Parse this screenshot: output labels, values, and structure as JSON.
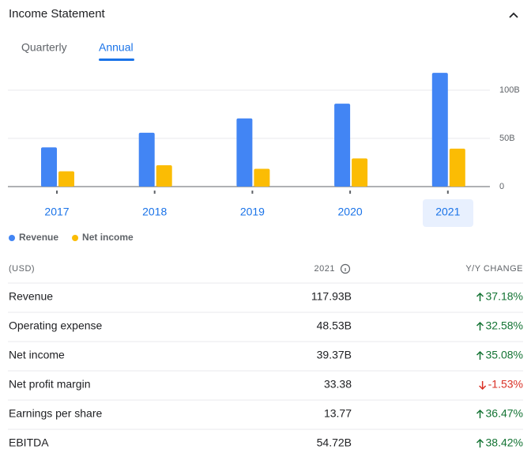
{
  "header": {
    "title": "Income Statement"
  },
  "tabs": [
    "Quarterly",
    "Annual"
  ],
  "chart_data": {
    "type": "bar",
    "categories": [
      "2017",
      "2018",
      "2019",
      "2020",
      "2021"
    ],
    "series": [
      {
        "name": "Revenue",
        "color": "#4285f4",
        "values": [
          40.65,
          55.84,
          70.7,
          85.97,
          117.93
        ]
      },
      {
        "name": "Net income",
        "color": "#fbbc04",
        "values": [
          15.93,
          22.11,
          18.49,
          29.15,
          39.37
        ]
      }
    ],
    "ylim": [
      0,
      120
    ],
    "yticks": [
      0,
      {
        "value": 50,
        "label": "50B"
      },
      {
        "value": 100,
        "label": "100B"
      }
    ],
    "grid": true
  },
  "table": {
    "header": [
      "(USD)",
      "2021",
      "Y/Y CHANGE"
    ],
    "rows": [
      [
        "Revenue",
        "117.93B",
        "37.18%"
      ],
      [
        "Operating expense",
        "48.53B",
        "32.58%"
      ],
      [
        "Net income",
        "39.37B",
        "35.08%"
      ],
      [
        "Net profit margin",
        "33.38",
        "-1.53%"
      ],
      [
        "Earnings per share",
        "13.77",
        "36.47%"
      ],
      [
        "EBITDA",
        "54.72B",
        "38.42%"
      ]
    ]
  }
}
